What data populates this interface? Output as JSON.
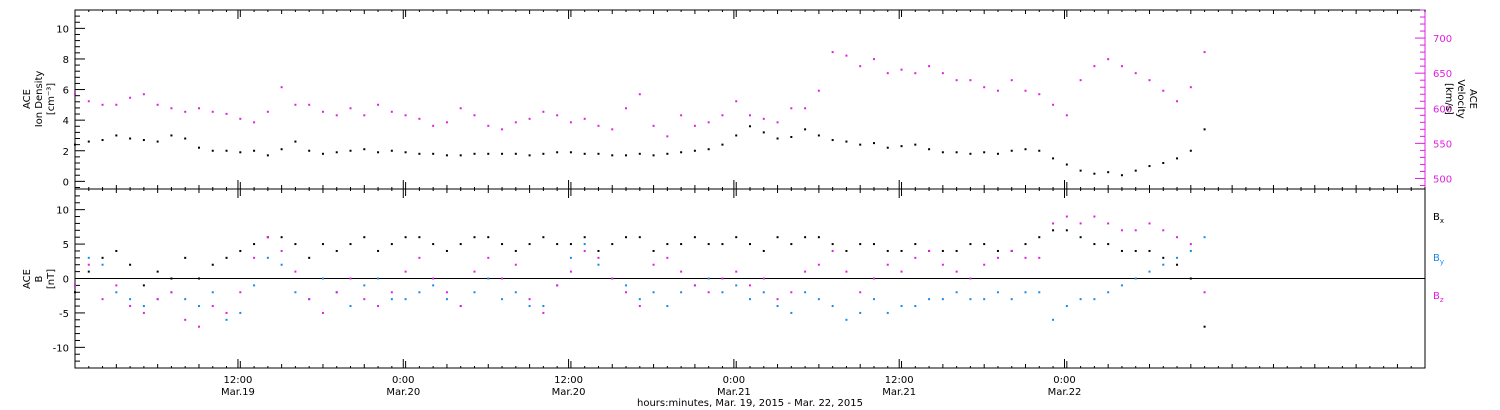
{
  "figure": {
    "xlabel": "hours:minutes, Mar. 19, 2015 - Mar. 22, 2015"
  },
  "colors": {
    "black": "#000000",
    "magenta": "#e020e0",
    "blue": "#1e88e5",
    "axis_right": "#e020e0"
  },
  "chart_data": [
    {
      "type": "scatter",
      "panel": "top",
      "ylabel_left": [
        "ACE",
        "Ion Density",
        "[cm⁻³]"
      ],
      "ylabel_right": [
        "ACE",
        "Velocity",
        "[km/s]"
      ],
      "x_range_hours": [
        0,
        98
      ],
      "x_ticks": [
        {
          "hours": 11.83,
          "label": "12:00",
          "sublabel": "Mar.19"
        },
        {
          "hours": 23.83,
          "label": "0:00",
          "sublabel": "Mar.20"
        },
        {
          "hours": 35.83,
          "label": "12:00",
          "sublabel": "Mar.20"
        },
        {
          "hours": 47.83,
          "label": "0:00",
          "sublabel": "Mar.21"
        },
        {
          "hours": 59.83,
          "label": "12:00",
          "sublabel": "Mar.21"
        },
        {
          "hours": 71.83,
          "label": "0:00",
          "sublabel": "Mar.22"
        }
      ],
      "y_left": {
        "min": -0.5,
        "max": 11.2,
        "ticks": [
          0,
          2,
          4,
          6,
          8,
          10
        ]
      },
      "y_right": {
        "min": 485,
        "max": 740,
        "ticks": [
          500,
          550,
          600,
          650,
          700
        ]
      },
      "grid": false,
      "series": [
        {
          "axis": "left",
          "color": "#000000",
          "x": [
            0,
            1,
            2,
            3,
            4,
            5,
            6,
            7,
            8,
            9,
            10,
            11,
            12,
            13,
            14,
            15,
            16,
            17,
            18,
            19,
            20,
            21,
            22,
            23,
            24,
            25,
            26,
            27,
            28,
            29,
            30,
            31,
            32,
            33,
            34,
            35,
            36,
            37,
            38,
            39,
            40,
            41,
            42,
            43,
            44,
            45,
            46,
            47,
            48,
            49,
            50,
            51,
            52,
            53,
            54,
            55,
            56,
            57,
            58,
            59,
            60,
            61,
            62,
            63,
            64,
            65,
            66,
            67,
            68,
            69,
            70,
            71,
            72,
            73,
            74,
            75,
            76,
            77,
            78,
            79,
            80,
            81,
            82
          ],
          "y": [
            2.4,
            2.6,
            2.7,
            3.0,
            2.8,
            2.7,
            2.6,
            3.0,
            2.8,
            2.2,
            2.0,
            2.0,
            1.9,
            2.0,
            1.7,
            2.1,
            2.6,
            2.0,
            1.8,
            1.9,
            2.0,
            2.1,
            1.9,
            2.0,
            1.9,
            1.8,
            1.8,
            1.7,
            1.7,
            1.8,
            1.8,
            1.8,
            1.8,
            1.7,
            1.8,
            1.9,
            1.9,
            1.8,
            1.8,
            1.7,
            1.7,
            1.8,
            1.7,
            1.8,
            1.9,
            2.0,
            2.1,
            2.4,
            3.0,
            3.6,
            3.2,
            2.8,
            2.9,
            3.4,
            3.0,
            2.7,
            2.6,
            2.4,
            2.5,
            2.2,
            2.3,
            2.4,
            2.1,
            1.9,
            1.9,
            1.8,
            1.9,
            1.8,
            2.0,
            2.1,
            2.0,
            1.5,
            1.1,
            0.7,
            0.5,
            0.6,
            0.4,
            0.7,
            1.0,
            1.2,
            1.5,
            2.0,
            3.4
          ]
        },
        {
          "axis": "right",
          "color": "#e020e0",
          "x": [
            0,
            1,
            2,
            3,
            4,
            5,
            6,
            7,
            8,
            9,
            10,
            11,
            12,
            13,
            14,
            15,
            16,
            17,
            18,
            19,
            20,
            21,
            22,
            23,
            24,
            25,
            26,
            27,
            28,
            29,
            30,
            31,
            32,
            33,
            34,
            35,
            36,
            37,
            38,
            39,
            40,
            41,
            42,
            43,
            44,
            45,
            46,
            47,
            48,
            49,
            50,
            51,
            52,
            53,
            54,
            55,
            56,
            57,
            58,
            59,
            60,
            61,
            62,
            63,
            64,
            65,
            66,
            67,
            68,
            69,
            70,
            71,
            72,
            73,
            74,
            75,
            76,
            77,
            78,
            79,
            80,
            81,
            82
          ],
          "y": [
            620,
            610,
            605,
            605,
            615,
            620,
            605,
            600,
            595,
            600,
            595,
            592,
            585,
            580,
            595,
            630,
            605,
            605,
            595,
            590,
            600,
            590,
            605,
            595,
            590,
            585,
            575,
            580,
            600,
            590,
            575,
            570,
            580,
            585,
            595,
            590,
            580,
            585,
            575,
            570,
            600,
            620,
            575,
            560,
            590,
            575,
            580,
            590,
            610,
            590,
            585,
            580,
            600,
            600,
            625,
            680,
            675,
            660,
            670,
            650,
            655,
            650,
            660,
            650,
            640,
            640,
            630,
            625,
            640,
            625,
            620,
            605,
            590,
            640,
            660,
            670,
            660,
            650,
            640,
            625,
            610,
            630,
            680
          ]
        }
      ]
    },
    {
      "type": "scatter",
      "panel": "bottom",
      "ylabel_left": [
        "ACE",
        "B",
        "[nT]"
      ],
      "x_range_hours": [
        0,
        98
      ],
      "y_left": {
        "min": -13,
        "max": 13,
        "ticks": [
          -10,
          -5,
          0,
          5,
          10
        ]
      },
      "zero_line": true,
      "grid": false,
      "legend": "right",
      "series": [
        {
          "name": "B",
          "subscript": "x",
          "color": "#000000",
          "x": [
            0,
            1,
            2,
            3,
            4,
            5,
            6,
            7,
            8,
            9,
            10,
            11,
            12,
            13,
            14,
            15,
            16,
            17,
            18,
            19,
            20,
            21,
            22,
            23,
            24,
            25,
            26,
            27,
            28,
            29,
            30,
            31,
            32,
            33,
            34,
            35,
            36,
            37,
            38,
            39,
            40,
            41,
            42,
            43,
            44,
            45,
            46,
            47,
            48,
            49,
            50,
            51,
            52,
            53,
            54,
            55,
            56,
            57,
            58,
            59,
            60,
            61,
            62,
            63,
            64,
            65,
            66,
            67,
            68,
            69,
            70,
            71,
            72,
            73,
            74,
            75,
            76,
            77,
            78,
            79,
            80,
            81,
            82
          ],
          "y": [
            -2,
            1,
            3,
            4,
            2,
            -1,
            1,
            0,
            3,
            0,
            2,
            3,
            4,
            5,
            6,
            6,
            5,
            3,
            5,
            4,
            5,
            6,
            4,
            5,
            6,
            6,
            5,
            4,
            5,
            6,
            6,
            5,
            4,
            5,
            6,
            5,
            5,
            6,
            4,
            5,
            6,
            6,
            4,
            5,
            5,
            6,
            5,
            5,
            6,
            5,
            4,
            6,
            5,
            6,
            6,
            5,
            4,
            5,
            5,
            4,
            4,
            5,
            4,
            4,
            4,
            5,
            5,
            4,
            4,
            5,
            6,
            7,
            7,
            6,
            5,
            5,
            4,
            4,
            4,
            3,
            2,
            0,
            -7
          ]
        },
        {
          "name": "B",
          "subscript": "y",
          "color": "#1e88e5",
          "x": [
            0,
            1,
            2,
            3,
            4,
            5,
            6,
            7,
            8,
            9,
            10,
            11,
            12,
            13,
            14,
            15,
            16,
            17,
            18,
            19,
            20,
            21,
            22,
            23,
            24,
            25,
            26,
            27,
            28,
            29,
            30,
            31,
            32,
            33,
            34,
            35,
            36,
            37,
            38,
            39,
            40,
            41,
            42,
            43,
            44,
            45,
            46,
            47,
            48,
            49,
            50,
            51,
            52,
            53,
            54,
            55,
            56,
            57,
            58,
            59,
            60,
            61,
            62,
            63,
            64,
            65,
            66,
            67,
            68,
            69,
            70,
            71,
            72,
            73,
            74,
            75,
            76,
            77,
            78,
            79,
            80,
            81,
            82
          ],
          "y": [
            -1,
            3,
            2,
            -2,
            -3,
            -4,
            -3,
            -2,
            -3,
            -4,
            -2,
            -6,
            -5,
            -1,
            3,
            2,
            -2,
            -3,
            0,
            -2,
            -4,
            -1,
            0,
            -3,
            -3,
            -2,
            -1,
            -3,
            -4,
            -2,
            0,
            -3,
            -2,
            -4,
            -4,
            -1,
            3,
            5,
            2,
            0,
            -1,
            -3,
            -2,
            -4,
            -2,
            -1,
            0,
            -2,
            -1,
            -3,
            -2,
            -4,
            -5,
            -2,
            -3,
            -4,
            -6,
            -5,
            -3,
            -5,
            -4,
            -4,
            -3,
            -3,
            -2,
            -3,
            -3,
            -2,
            -3,
            -2,
            -2,
            -6,
            -4,
            -3,
            -3,
            -2,
            -1,
            0,
            1,
            2,
            3,
            4,
            6
          ]
        },
        {
          "name": "B",
          "subscript": "z",
          "color": "#e020e0",
          "x": [
            0,
            1,
            2,
            3,
            4,
            5,
            6,
            7,
            8,
            9,
            10,
            11,
            12,
            13,
            14,
            15,
            16,
            17,
            18,
            19,
            20,
            21,
            22,
            23,
            24,
            25,
            26,
            27,
            28,
            29,
            30,
            31,
            32,
            33,
            34,
            35,
            36,
            37,
            38,
            39,
            40,
            41,
            42,
            43,
            44,
            45,
            46,
            47,
            48,
            49,
            50,
            51,
            52,
            53,
            54,
            55,
            56,
            57,
            58,
            59,
            60,
            61,
            62,
            63,
            64,
            65,
            66,
            67,
            68,
            69,
            70,
            71,
            72,
            73,
            74,
            75,
            76,
            77,
            78,
            79,
            80,
            81,
            82
          ],
          "y": [
            -1,
            2,
            -3,
            -1,
            -4,
            -5,
            -3,
            -2,
            -6,
            -7,
            -4,
            -5,
            -2,
            3,
            6,
            4,
            1,
            -3,
            -5,
            -2,
            0,
            -3,
            -4,
            -2,
            1,
            3,
            0,
            -2,
            -4,
            1,
            3,
            0,
            2,
            -3,
            -5,
            -1,
            1,
            4,
            3,
            0,
            -2,
            -4,
            2,
            3,
            1,
            -1,
            -2,
            0,
            1,
            -1,
            0,
            -3,
            -2,
            1,
            2,
            4,
            1,
            -2,
            0,
            2,
            1,
            3,
            4,
            2,
            1,
            0,
            2,
            3,
            4,
            3,
            3,
            8,
            9,
            8,
            9,
            8,
            7,
            7,
            8,
            7,
            6,
            5,
            -2
          ]
        }
      ]
    }
  ]
}
